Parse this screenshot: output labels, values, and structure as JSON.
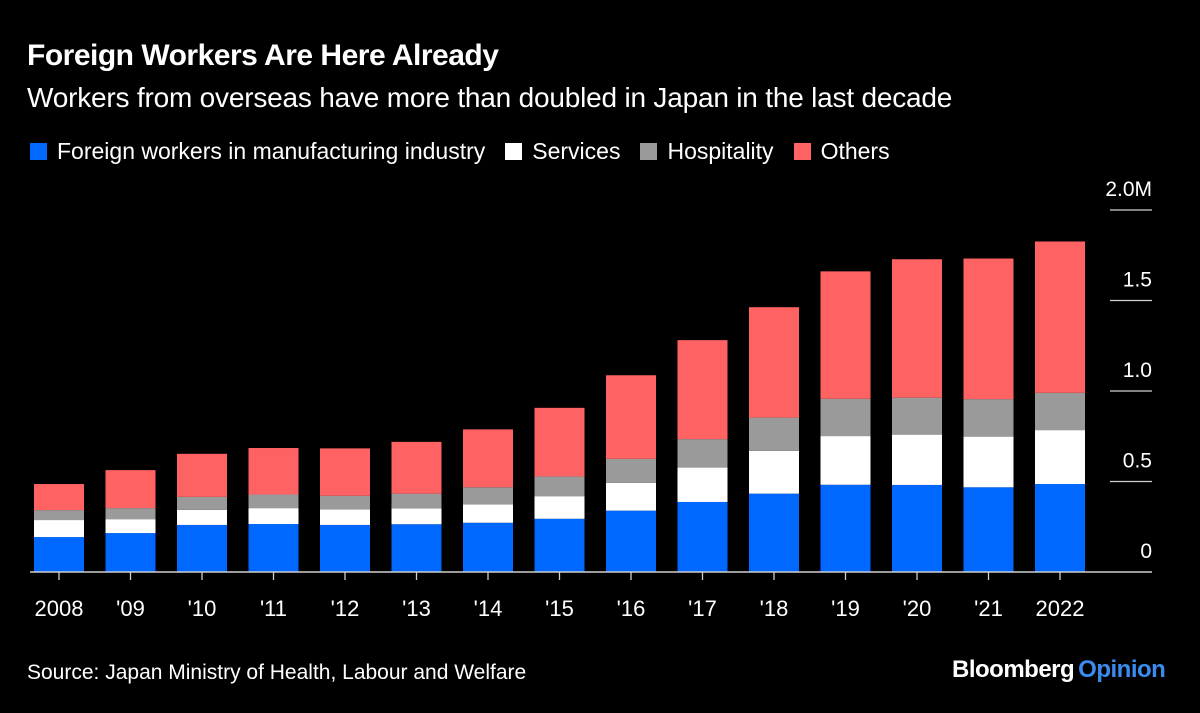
{
  "header": {
    "title": "Foreign Workers Are Here Already",
    "subtitle": "Workers from overseas have more than doubled in Japan in the last decade"
  },
  "footer": {
    "source": "Source: Japan Ministry of Health, Labour and Welfare",
    "brand_main": "Bloomberg",
    "brand_accent": "Opinion"
  },
  "colors": {
    "background": "#000000",
    "manufacturing": "#0068ff",
    "services": "#ffffff",
    "hospitality": "#9a9a9a",
    "others": "#ff6262",
    "brand_accent": "#3a8bf0"
  },
  "chart_data": {
    "type": "bar",
    "stacked": true,
    "title": "Foreign Workers Are Here Already",
    "subtitle": "Workers from overseas have more than doubled in Japan in the last decade",
    "xlabel": "",
    "ylabel": "",
    "unit": "M",
    "ylim": [
      0,
      2.0
    ],
    "yticks": [
      0,
      0.5,
      1.0,
      1.5,
      2.0
    ],
    "ytick_labels": [
      "0",
      "0.5",
      "1.0",
      "1.5",
      "2.0M"
    ],
    "y_axis_side": "right",
    "grid": true,
    "legend_position": "top-left",
    "categories": [
      "2008",
      "'09",
      "'10",
      "'11",
      "'12",
      "'13",
      "'14",
      "'15",
      "'16",
      "'17",
      "'18",
      "'19",
      "'20",
      "'21",
      "2022"
    ],
    "series": [
      {
        "name": "Foreign workers in manufacturing industry",
        "color": "#0068ff",
        "values": [
          0.193,
          0.215,
          0.26,
          0.265,
          0.26,
          0.264,
          0.272,
          0.294,
          0.339,
          0.387,
          0.433,
          0.482,
          0.481,
          0.468,
          0.486
        ]
      },
      {
        "name": "Services",
        "color": "#ffffff",
        "values": [
          0.094,
          0.077,
          0.083,
          0.088,
          0.086,
          0.088,
          0.102,
          0.125,
          0.153,
          0.19,
          0.236,
          0.269,
          0.278,
          0.28,
          0.298
        ]
      },
      {
        "name": "Hospitality",
        "color": "#9a9a9a",
        "values": [
          0.055,
          0.061,
          0.072,
          0.075,
          0.075,
          0.081,
          0.094,
          0.109,
          0.133,
          0.157,
          0.184,
          0.206,
          0.204,
          0.207,
          0.206
        ]
      },
      {
        "name": "Others",
        "color": "#ff6262",
        "values": [
          0.144,
          0.21,
          0.238,
          0.257,
          0.262,
          0.286,
          0.32,
          0.379,
          0.462,
          0.547,
          0.61,
          0.704,
          0.765,
          0.777,
          0.836
        ]
      }
    ]
  }
}
